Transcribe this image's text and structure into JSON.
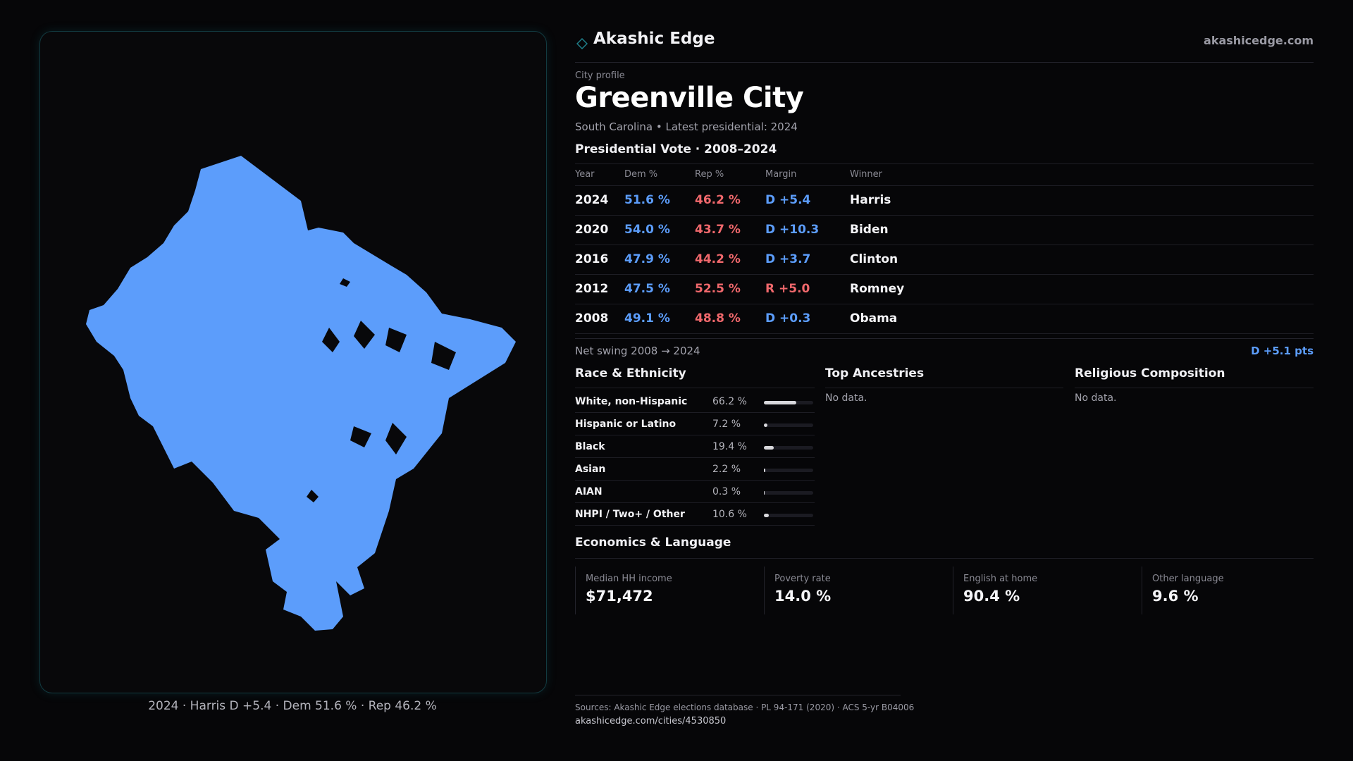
{
  "brand": {
    "name": "Akashic Edge",
    "url": "akashicedge.com",
    "logo_icon": "diamond-icon",
    "accent": "#1f7f8a"
  },
  "profile": {
    "kicker": "City profile",
    "title": "Greenville City",
    "subtitle": "South Carolina • Latest presidential: 2024"
  },
  "map": {
    "caption": "2024 · Harris D +5.4 · Dem 51.6 % · Rep 46.2 %",
    "fill_color": "#5c9dfb"
  },
  "vote": {
    "heading": "Presidential Vote · 2008–2024",
    "columns": [
      "Year",
      "Dem %",
      "Rep %",
      "Margin",
      "Winner"
    ],
    "rows": [
      {
        "year": "2024",
        "dem": "51.6 %",
        "rep": "46.2 %",
        "margin": "D +5.4",
        "party": "D",
        "winner": "Harris"
      },
      {
        "year": "2020",
        "dem": "54.0 %",
        "rep": "43.7 %",
        "margin": "D +10.3",
        "party": "D",
        "winner": "Biden"
      },
      {
        "year": "2016",
        "dem": "47.9 %",
        "rep": "44.2 %",
        "margin": "D +3.7",
        "party": "D",
        "winner": "Clinton"
      },
      {
        "year": "2012",
        "dem": "47.5 %",
        "rep": "52.5 %",
        "margin": "R +5.0",
        "party": "R",
        "winner": "Romney"
      },
      {
        "year": "2008",
        "dem": "49.1 %",
        "rep": "48.8 %",
        "margin": "D +0.3",
        "party": "D",
        "winner": "Obama"
      }
    ],
    "swing_label": "Net swing 2008 → 2024",
    "swing_value": "D +5.1 pts",
    "dem_color": "#5c9dfb",
    "rep_color": "#f0686c"
  },
  "race": {
    "heading": "Race & Ethnicity",
    "rows": [
      {
        "label": "White, non-Hispanic",
        "pct_text": "66.2 %",
        "share": 0.662
      },
      {
        "label": "Hispanic or Latino",
        "pct_text": "7.2 %",
        "share": 0.072
      },
      {
        "label": "Black",
        "pct_text": "19.4 %",
        "share": 0.194
      },
      {
        "label": "Asian",
        "pct_text": "2.2 %",
        "share": 0.022
      },
      {
        "label": "AIAN",
        "pct_text": "0.3 %",
        "share": 0.003
      },
      {
        "label": "NHPI / Two+ / Other",
        "pct_text": "10.6 %",
        "share": 0.106
      }
    ]
  },
  "ancestries": {
    "heading": "Top Ancestries",
    "empty_text": "No data."
  },
  "religion": {
    "heading": "Religious Composition",
    "empty_text": "No data."
  },
  "economics": {
    "heading": "Economics & Language",
    "stats": [
      {
        "label": "Median HH income",
        "value": "$71,472"
      },
      {
        "label": "Poverty rate",
        "value": "14.0 %"
      },
      {
        "label": "English at home",
        "value": "90.4 %"
      },
      {
        "label": "Other language",
        "value": "9.6 %"
      }
    ]
  },
  "footer": {
    "sources": "Sources: Akashic Edge elections database · PL 94-171 (2020) · ACS 5-yr B04006",
    "url": "akashicedge.com/cities/4530850"
  }
}
